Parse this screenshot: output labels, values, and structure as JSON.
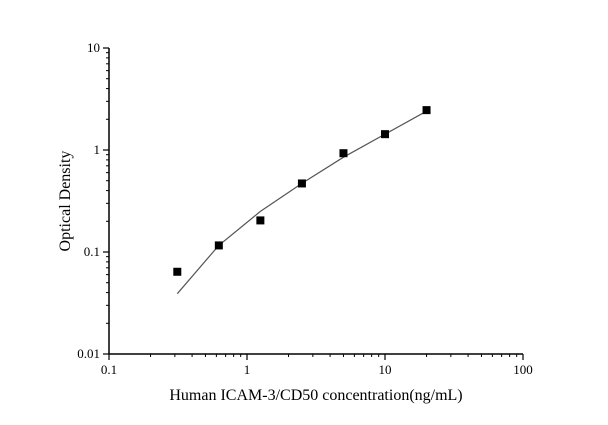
{
  "chart_data": {
    "type": "scatter",
    "title": "",
    "xlabel": "Human ICAM-3/CD50 concentration(ng/mL)",
    "ylabel": "Optical Density",
    "xscale": "log",
    "yscale": "log",
    "xlim": [
      0.1,
      100
    ],
    "ylim": [
      0.01,
      10
    ],
    "xticks": [
      "0.1",
      "1",
      "10",
      "100"
    ],
    "yticks": [
      "0.01",
      "0.1",
      "1",
      "10"
    ],
    "grid": false,
    "points": {
      "x": [
        0.3125,
        0.625,
        1.25,
        2.5,
        5,
        10,
        20
      ],
      "y": [
        0.064,
        0.116,
        0.204,
        0.47,
        0.93,
        1.43,
        2.46
      ]
    },
    "fit_curve": {
      "x": [
        0.3125,
        0.625,
        1.25,
        2.5,
        5,
        10,
        20
      ],
      "y": [
        0.039,
        0.116,
        0.25,
        0.47,
        0.85,
        1.43,
        2.4
      ]
    },
    "colors": {
      "points": "#000000",
      "curve": "#555555",
      "axes": "#000000"
    }
  }
}
